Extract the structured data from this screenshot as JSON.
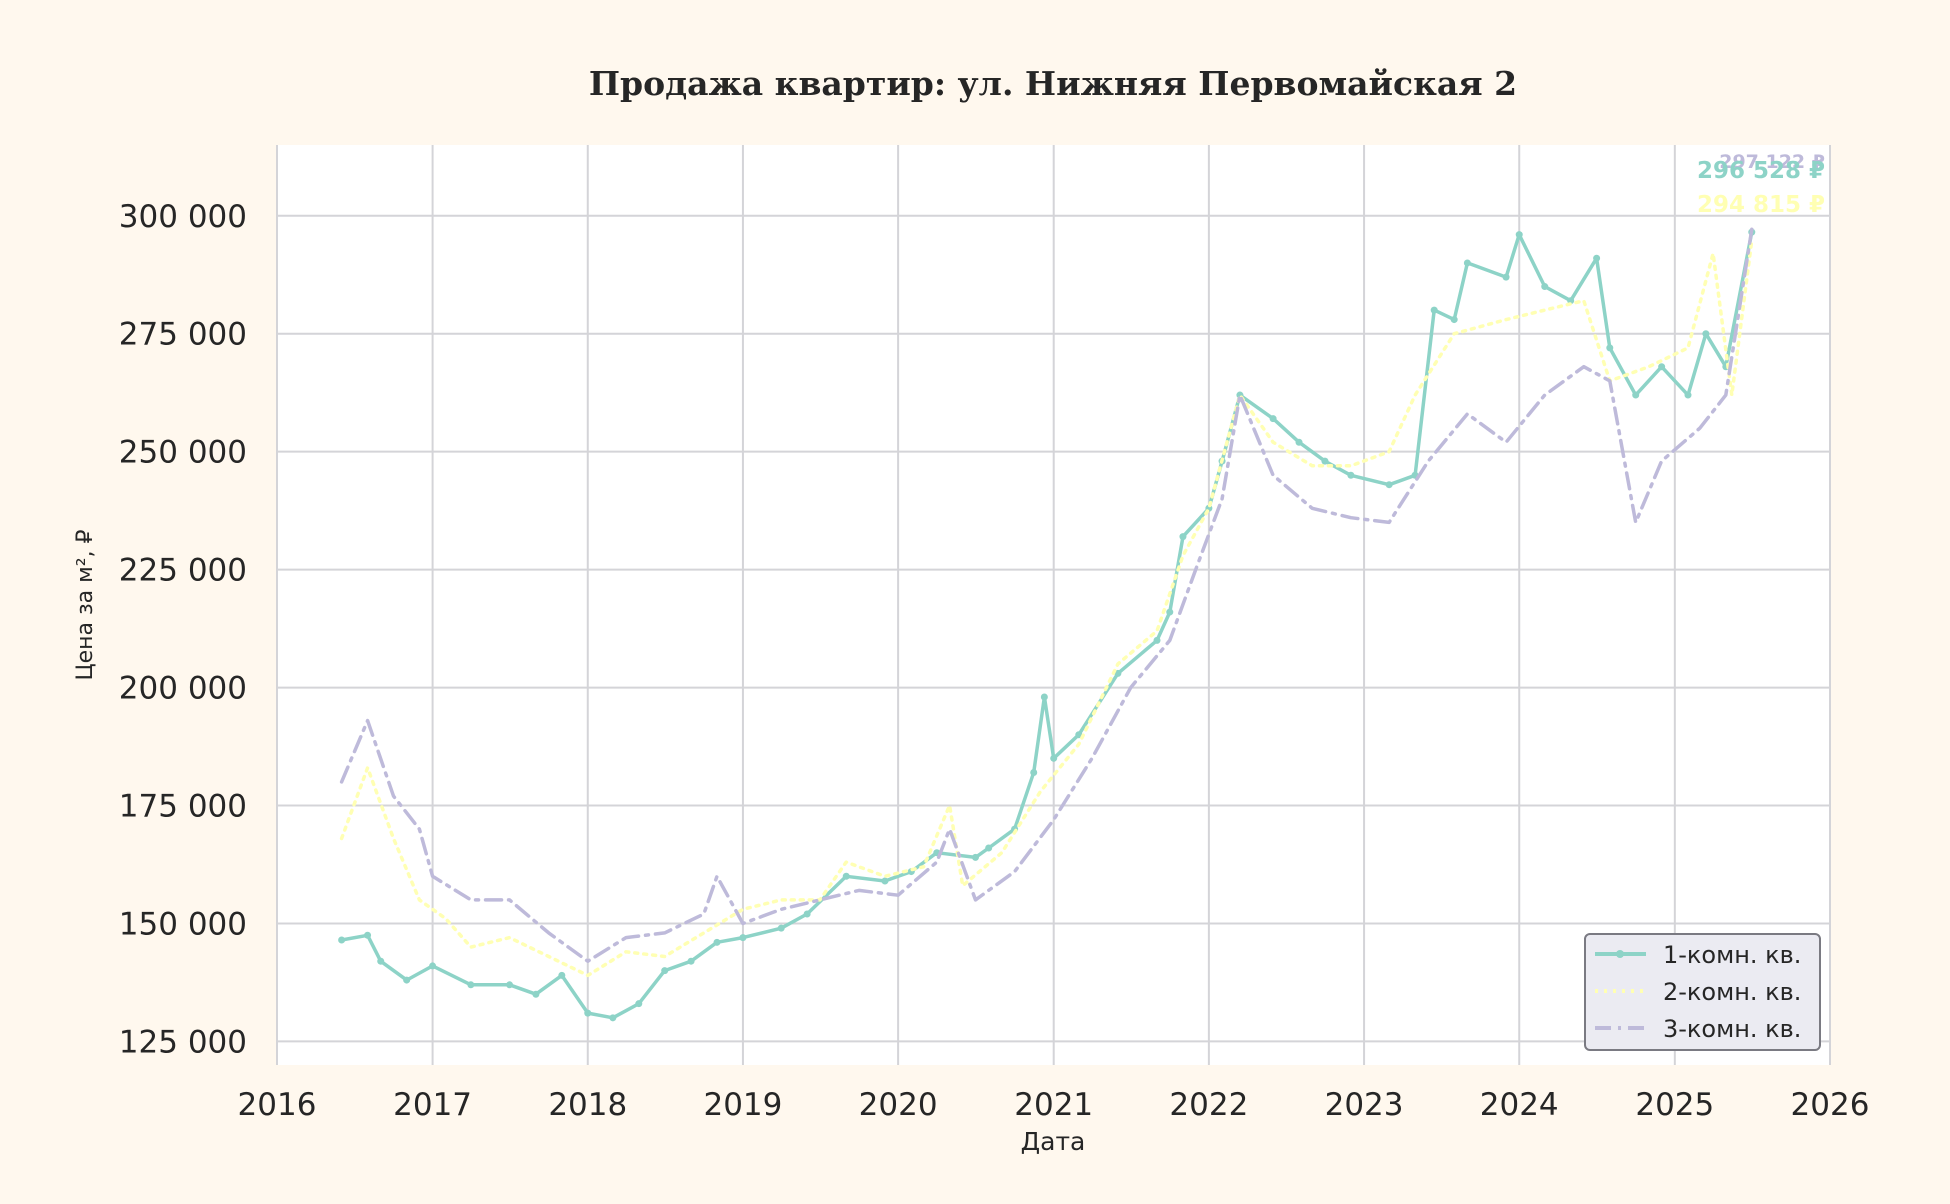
{
  "chart_data": {
    "type": "line",
    "title": "Продажа квартир: ул. Нижняя Первомайская 2",
    "xlabel": "Дата",
    "ylabel": "Цена за м², ₽",
    "x_range": [
      "2016-01-01",
      "2026-01-01"
    ],
    "ylim": [
      120000,
      315000
    ],
    "x_ticks": [
      "2016",
      "2017",
      "2018",
      "2019",
      "2020",
      "2021",
      "2022",
      "2023",
      "2024",
      "2025",
      "2026"
    ],
    "y_ticks": [
      "125 000",
      "150 000",
      "175 000",
      "200 000",
      "225 000",
      "250 000",
      "275 000",
      "300 000"
    ],
    "y_tick_values": [
      125000,
      150000,
      175000,
      200000,
      225000,
      250000,
      275000,
      300000
    ],
    "grid": true,
    "legend_position": "bottom-right",
    "end_labels": [
      "297 122 ₽",
      "296 528 ₽",
      "294 815 ₽"
    ],
    "colors": {
      "background": "#fff8ee",
      "plot_background": "#ffffff",
      "grid": "#d4d4d8",
      "text": "#262626"
    },
    "series": [
      {
        "name": "1-комн. кв.",
        "color": "#8dd3c7",
        "style": "solid-markers",
        "points": [
          [
            "2016-06-01",
            146500
          ],
          [
            "2016-08-01",
            147500
          ],
          [
            "2016-09-01",
            142000
          ],
          [
            "2016-11-01",
            138000
          ],
          [
            "2017-01-01",
            141000
          ],
          [
            "2017-04-01",
            137000
          ],
          [
            "2017-07-01",
            137000
          ],
          [
            "2017-09-01",
            135000
          ],
          [
            "2017-11-01",
            139000
          ],
          [
            "2018-01-01",
            131000
          ],
          [
            "2018-03-01",
            130000
          ],
          [
            "2018-05-01",
            133000
          ],
          [
            "2018-07-01",
            140000
          ],
          [
            "2018-09-01",
            142000
          ],
          [
            "2018-11-01",
            146000
          ],
          [
            "2019-01-01",
            147000
          ],
          [
            "2019-04-01",
            149000
          ],
          [
            "2019-06-01",
            152000
          ],
          [
            "2019-09-01",
            160000
          ],
          [
            "2019-12-01",
            159000
          ],
          [
            "2020-02-01",
            161000
          ],
          [
            "2020-04-01",
            165000
          ],
          [
            "2020-07-01",
            164000
          ],
          [
            "2020-08-01",
            166000
          ],
          [
            "2020-10-01",
            170000
          ],
          [
            "2020-11-15",
            182000
          ],
          [
            "2020-12-10",
            198000
          ],
          [
            "2021-01-01",
            185000
          ],
          [
            "2021-03-01",
            190000
          ],
          [
            "2021-06-01",
            203000
          ],
          [
            "2021-09-01",
            210000
          ],
          [
            "2021-10-01",
            216000
          ],
          [
            "2021-11-01",
            232000
          ],
          [
            "2022-01-01",
            238000
          ],
          [
            "2022-02-01",
            248000
          ],
          [
            "2022-03-15",
            262000
          ],
          [
            "2022-06-01",
            257000
          ],
          [
            "2022-08-01",
            252000
          ],
          [
            "2022-10-01",
            248000
          ],
          [
            "2022-12-01",
            245000
          ],
          [
            "2023-03-01",
            243000
          ],
          [
            "2023-05-01",
            245000
          ],
          [
            "2023-06-15",
            280000
          ],
          [
            "2023-08-01",
            278000
          ],
          [
            "2023-09-01",
            290000
          ],
          [
            "2023-12-01",
            287000
          ],
          [
            "2024-01-01",
            296000
          ],
          [
            "2024-03-01",
            285000
          ],
          [
            "2024-05-01",
            282000
          ],
          [
            "2024-07-01",
            291000
          ],
          [
            "2024-08-01",
            272000
          ],
          [
            "2024-10-01",
            262000
          ],
          [
            "2024-12-01",
            268000
          ],
          [
            "2025-02-01",
            262000
          ],
          [
            "2025-03-15",
            275000
          ],
          [
            "2025-05-01",
            268000
          ],
          [
            "2025-07-01",
            296528
          ]
        ]
      },
      {
        "name": "2-комн. кв.",
        "color": "#ffffb3",
        "style": "dotted",
        "points": [
          [
            "2016-06-01",
            168000
          ],
          [
            "2016-08-01",
            183000
          ],
          [
            "2016-10-01",
            168000
          ],
          [
            "2016-12-01",
            155000
          ],
          [
            "2017-02-01",
            151000
          ],
          [
            "2017-04-01",
            145000
          ],
          [
            "2017-07-01",
            147000
          ],
          [
            "2017-10-01",
            143000
          ],
          [
            "2018-01-01",
            139000
          ],
          [
            "2018-04-01",
            144000
          ],
          [
            "2018-07-01",
            143000
          ],
          [
            "2018-10-01",
            148000
          ],
          [
            "2019-01-01",
            153000
          ],
          [
            "2019-04-01",
            155000
          ],
          [
            "2019-07-01",
            155000
          ],
          [
            "2019-09-01",
            163000
          ],
          [
            "2019-12-01",
            160000
          ],
          [
            "2020-03-01",
            162000
          ],
          [
            "2020-05-01",
            175000
          ],
          [
            "2020-06-01",
            158000
          ],
          [
            "2020-09-01",
            165000
          ],
          [
            "2020-12-01",
            178000
          ],
          [
            "2021-03-01",
            188000
          ],
          [
            "2021-06-01",
            205000
          ],
          [
            "2021-09-01",
            212000
          ],
          [
            "2021-11-01",
            228000
          ],
          [
            "2022-01-01",
            238000
          ],
          [
            "2022-03-15",
            262000
          ],
          [
            "2022-06-01",
            252000
          ],
          [
            "2022-09-01",
            247000
          ],
          [
            "2022-12-01",
            247000
          ],
          [
            "2023-03-01",
            250000
          ],
          [
            "2023-05-01",
            262000
          ],
          [
            "2023-08-01",
            275000
          ],
          [
            "2023-12-01",
            278000
          ],
          [
            "2024-03-01",
            280000
          ],
          [
            "2024-06-01",
            282000
          ],
          [
            "2024-08-01",
            265000
          ],
          [
            "2024-11-01",
            268000
          ],
          [
            "2025-02-01",
            272000
          ],
          [
            "2025-04-01",
            292000
          ],
          [
            "2025-05-15",
            262000
          ],
          [
            "2025-07-01",
            294815
          ]
        ]
      },
      {
        "name": "3-комн. кв.",
        "color": "#bebada",
        "style": "dash-dot",
        "points": [
          [
            "2016-06-01",
            180000
          ],
          [
            "2016-08-01",
            193000
          ],
          [
            "2016-10-01",
            177000
          ],
          [
            "2016-12-01",
            170000
          ],
          [
            "2017-01-01",
            160000
          ],
          [
            "2017-04-01",
            155000
          ],
          [
            "2017-07-01",
            155000
          ],
          [
            "2017-10-01",
            148000
          ],
          [
            "2018-01-01",
            142000
          ],
          [
            "2018-04-01",
            147000
          ],
          [
            "2018-07-01",
            148000
          ],
          [
            "2018-10-01",
            152000
          ],
          [
            "2018-11-01",
            160000
          ],
          [
            "2019-01-01",
            150000
          ],
          [
            "2019-04-01",
            153000
          ],
          [
            "2019-07-01",
            155000
          ],
          [
            "2019-10-01",
            157000
          ],
          [
            "2020-01-01",
            156000
          ],
          [
            "2020-04-01",
            163000
          ],
          [
            "2020-05-01",
            170000
          ],
          [
            "2020-07-01",
            155000
          ],
          [
            "2020-10-01",
            161000
          ],
          [
            "2021-01-01",
            172000
          ],
          [
            "2021-04-01",
            185000
          ],
          [
            "2021-07-01",
            200000
          ],
          [
            "2021-10-01",
            210000
          ],
          [
            "2021-12-01",
            225000
          ],
          [
            "2022-02-01",
            240000
          ],
          [
            "2022-03-15",
            262000
          ],
          [
            "2022-06-01",
            245000
          ],
          [
            "2022-09-01",
            238000
          ],
          [
            "2022-12-01",
            236000
          ],
          [
            "2023-03-01",
            235000
          ],
          [
            "2023-06-01",
            248000
          ],
          [
            "2023-09-01",
            258000
          ],
          [
            "2023-12-01",
            252000
          ],
          [
            "2024-03-01",
            262000
          ],
          [
            "2024-06-01",
            268000
          ],
          [
            "2024-08-01",
            265000
          ],
          [
            "2024-10-01",
            235000
          ],
          [
            "2024-12-01",
            248000
          ],
          [
            "2025-03-01",
            255000
          ],
          [
            "2025-05-01",
            262000
          ],
          [
            "2025-07-01",
            297122
          ]
        ]
      }
    ]
  }
}
